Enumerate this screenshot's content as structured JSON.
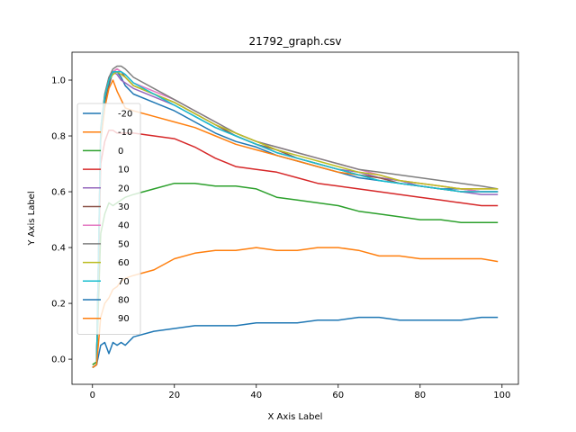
{
  "chart_data": {
    "type": "line",
    "title": "21792_graph.csv",
    "xlabel": "X Axis Label",
    "ylabel": "Y Axis Label",
    "xlim": [
      -5,
      104
    ],
    "ylim": [
      -0.09,
      1.1
    ],
    "x_ticks": [
      0,
      20,
      40,
      60,
      80,
      100
    ],
    "y_ticks": [
      0.0,
      0.2,
      0.4,
      0.6,
      0.8,
      1.0
    ],
    "x_tick_labels": [
      "0",
      "20",
      "40",
      "60",
      "80",
      "100"
    ],
    "y_tick_labels": [
      "0.0",
      "0.2",
      "0.4",
      "0.6",
      "0.8",
      "1.0"
    ],
    "grid": false,
    "legend_position": "left",
    "x": [
      0,
      1,
      2,
      3,
      4,
      5,
      6,
      7,
      8,
      10,
      15,
      20,
      25,
      30,
      35,
      40,
      45,
      50,
      55,
      60,
      65,
      70,
      75,
      80,
      85,
      90,
      95,
      99
    ],
    "series": [
      {
        "name": "-20",
        "color": "#1f77b4",
        "values": [
          -0.03,
          -0.02,
          0.8,
          0.92,
          0.98,
          1.03,
          1.03,
          1.01,
          0.98,
          0.95,
          0.92,
          0.89,
          0.85,
          0.81,
          0.78,
          0.76,
          0.73,
          0.71,
          0.69,
          0.67,
          0.65,
          0.64,
          0.63,
          0.62,
          0.61,
          0.61,
          0.6,
          0.6
        ]
      },
      {
        "name": "-10",
        "color": "#ff7f0e",
        "values": [
          -0.02,
          -0.01,
          0.78,
          0.9,
          0.97,
          1.0,
          0.96,
          0.93,
          0.9,
          0.89,
          0.87,
          0.85,
          0.83,
          0.8,
          0.77,
          0.75,
          0.73,
          0.71,
          0.69,
          0.67,
          0.66,
          0.65,
          0.64,
          0.63,
          0.62,
          0.61,
          0.61,
          0.61
        ]
      },
      {
        "name": "0",
        "color": "#2ca02c",
        "values": [
          -0.02,
          -0.01,
          0.45,
          0.52,
          0.56,
          0.55,
          0.56,
          0.57,
          0.58,
          0.59,
          0.61,
          0.63,
          0.63,
          0.62,
          0.62,
          0.61,
          0.58,
          0.57,
          0.56,
          0.55,
          0.53,
          0.52,
          0.51,
          0.5,
          0.5,
          0.49,
          0.49,
          0.49
        ]
      },
      {
        "name": "10",
        "color": "#d62728",
        "values": [
          -0.03,
          -0.02,
          0.7,
          0.78,
          0.82,
          0.82,
          0.81,
          0.81,
          0.81,
          0.81,
          0.8,
          0.79,
          0.76,
          0.72,
          0.69,
          0.68,
          0.67,
          0.65,
          0.63,
          0.62,
          0.61,
          0.6,
          0.59,
          0.58,
          0.57,
          0.56,
          0.55,
          0.55
        ]
      },
      {
        "name": "20",
        "color": "#9467bd",
        "values": [
          -0.03,
          -0.02,
          0.82,
          0.95,
          1.01,
          1.03,
          1.02,
          1.0,
          0.99,
          0.97,
          0.94,
          0.91,
          0.87,
          0.83,
          0.8,
          0.77,
          0.74,
          0.72,
          0.7,
          0.68,
          0.67,
          0.65,
          0.64,
          0.62,
          0.61,
          0.6,
          0.59,
          0.59
        ]
      },
      {
        "name": "30",
        "color": "#8c564b",
        "values": [
          -0.03,
          -0.02,
          0.81,
          0.93,
          0.99,
          1.03,
          1.04,
          1.03,
          1.01,
          0.98,
          0.95,
          0.92,
          0.88,
          0.84,
          0.8,
          0.77,
          0.75,
          0.72,
          0.7,
          0.68,
          0.66,
          0.65,
          0.63,
          0.62,
          0.61,
          0.6,
          0.6,
          0.6
        ]
      },
      {
        "name": "40",
        "color": "#e377c2",
        "values": [
          -0.03,
          -0.02,
          0.82,
          0.94,
          1.0,
          1.03,
          1.04,
          1.03,
          1.02,
          0.99,
          0.96,
          0.93,
          0.89,
          0.85,
          0.81,
          0.78,
          0.76,
          0.74,
          0.72,
          0.7,
          0.68,
          0.66,
          0.64,
          0.63,
          0.62,
          0.61,
          0.6,
          0.6
        ]
      },
      {
        "name": "50",
        "color": "#7f7f7f",
        "values": [
          -0.03,
          -0.02,
          0.83,
          0.95,
          1.01,
          1.04,
          1.05,
          1.05,
          1.04,
          1.01,
          0.97,
          0.93,
          0.89,
          0.85,
          0.81,
          0.78,
          0.76,
          0.74,
          0.72,
          0.7,
          0.68,
          0.67,
          0.66,
          0.65,
          0.64,
          0.63,
          0.62,
          0.61
        ]
      },
      {
        "name": "60",
        "color": "#bcbd22",
        "values": [
          -0.03,
          -0.02,
          0.82,
          0.94,
          1.0,
          1.02,
          1.03,
          1.02,
          1.01,
          0.98,
          0.95,
          0.92,
          0.88,
          0.84,
          0.81,
          0.78,
          0.75,
          0.73,
          0.71,
          0.69,
          0.67,
          0.66,
          0.64,
          0.63,
          0.62,
          0.61,
          0.61,
          0.61
        ]
      },
      {
        "name": "70",
        "color": "#17becf",
        "values": [
          -0.03,
          -0.02,
          0.82,
          0.94,
          1.0,
          1.03,
          1.03,
          1.03,
          1.02,
          0.99,
          0.95,
          0.91,
          0.87,
          0.83,
          0.8,
          0.77,
          0.74,
          0.72,
          0.7,
          0.68,
          0.66,
          0.64,
          0.63,
          0.62,
          0.61,
          0.6,
          0.6,
          0.6
        ]
      },
      {
        "name": "80",
        "color": "#1f77b4",
        "values": [
          -0.03,
          -0.02,
          0.05,
          0.06,
          0.02,
          0.06,
          0.05,
          0.06,
          0.05,
          0.08,
          0.1,
          0.11,
          0.12,
          0.12,
          0.12,
          0.13,
          0.13,
          0.13,
          0.14,
          0.14,
          0.15,
          0.15,
          0.14,
          0.14,
          0.14,
          0.14,
          0.15,
          0.15
        ]
      },
      {
        "name": "90",
        "color": "#ff7f0e",
        "values": [
          -0.03,
          -0.02,
          0.15,
          0.2,
          0.22,
          0.25,
          0.26,
          0.28,
          0.29,
          0.3,
          0.32,
          0.36,
          0.38,
          0.39,
          0.39,
          0.4,
          0.39,
          0.39,
          0.4,
          0.4,
          0.39,
          0.37,
          0.37,
          0.36,
          0.36,
          0.36,
          0.36,
          0.35
        ]
      }
    ]
  }
}
